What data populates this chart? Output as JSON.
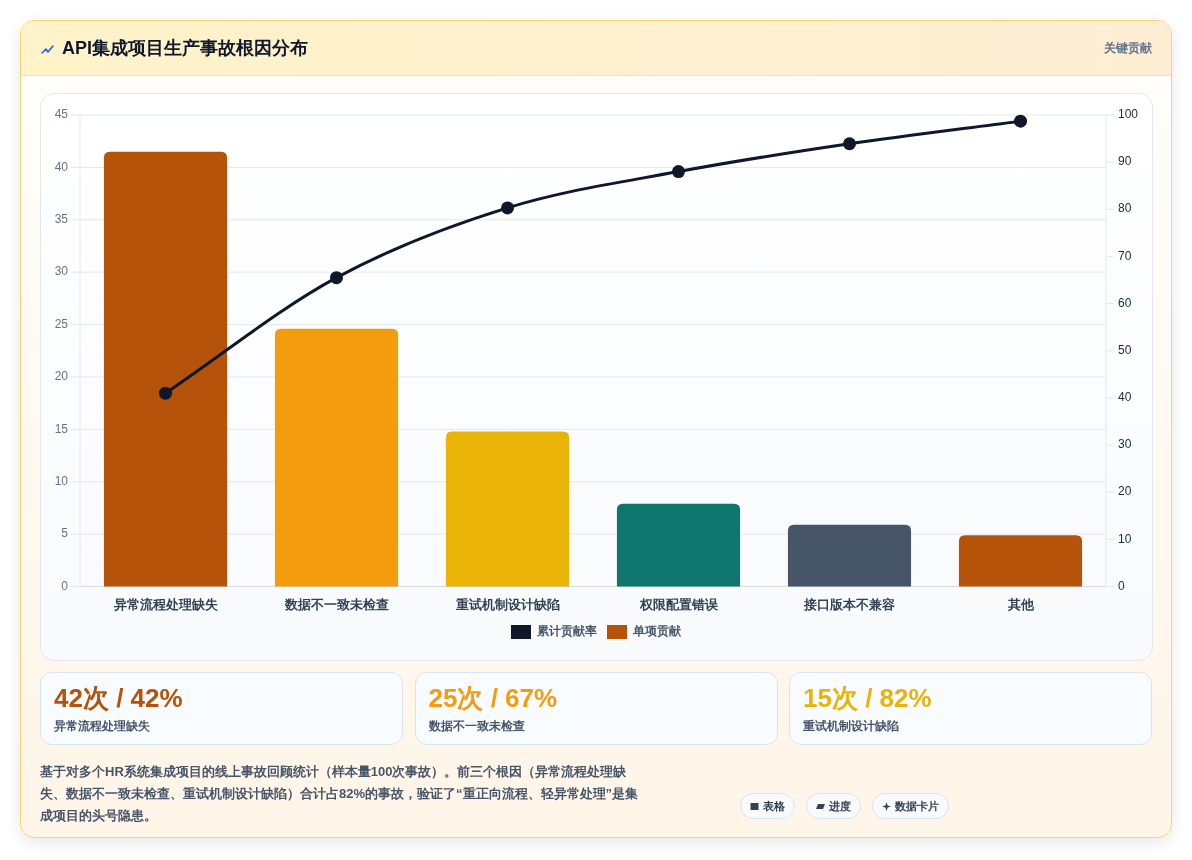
{
  "chart_data": [
    {
      "type": "bar",
      "title": "API集成项目生产事故根因分布",
      "subtitle": "关键贡献",
      "categories": [
        "异常流程处理缺失",
        "数据不一致未检查",
        "重试机制设计缺陷",
        "权限配置错误",
        "接口版本不兼容",
        "其他"
      ],
      "series": [
        {
          "name": "累计贡献率",
          "type": "line",
          "axis": "y2",
          "color": "#0f172a",
          "values": [
            41,
            65.5,
            80.3,
            88,
            93.9,
            98.7
          ]
        },
        {
          "name": "单项贡献",
          "type": "bar",
          "color": "#b45309",
          "colors": [
            "#b45309",
            "#f39c0e",
            "#e9b308",
            "#0f766e",
            "#475569",
            "#b45309"
          ],
          "values": [
            41.5,
            24.6,
            14.8,
            7.9,
            5.9,
            4.9
          ]
        }
      ],
      "ylim": [
        0,
        45
      ],
      "yticks": [
        0,
        5,
        10,
        15,
        20,
        25,
        30,
        35,
        40,
        45
      ],
      "y2lim": [
        0,
        100
      ],
      "y2ticks": [
        0,
        10,
        20,
        30,
        40,
        50,
        60,
        70,
        80,
        90,
        100
      ],
      "grid": "y",
      "legend": "bottom",
      "marker": "circle",
      "line_style": "solid",
      "annotations": [
        "基于对多个HR系统集成项目的线上事故回顾统计（样本量100次事故）。前三个根因（异常流程处理缺失、数据不一致未检查、重试机制设计缺陷）合计占82%的事故，验证了“重正向流程、轻异常处理”是集成项目的头号隐患。",
        "表格",
        "进度",
        "数据卡片"
      ]
    },
    {
      "type": "other",
      "title": "42次 / 42%",
      "subtitle": "异常流程处理缺失",
      "color": "#b45309"
    },
    {
      "type": "other",
      "title": "25次 / 67%",
      "subtitle": "数据不一致未检查",
      "color": "#f39c0e"
    },
    {
      "type": "other",
      "title": "15次 / 82%",
      "subtitle": "重试机制设计缺陷",
      "color": "#e9b308"
    }
  ]
}
